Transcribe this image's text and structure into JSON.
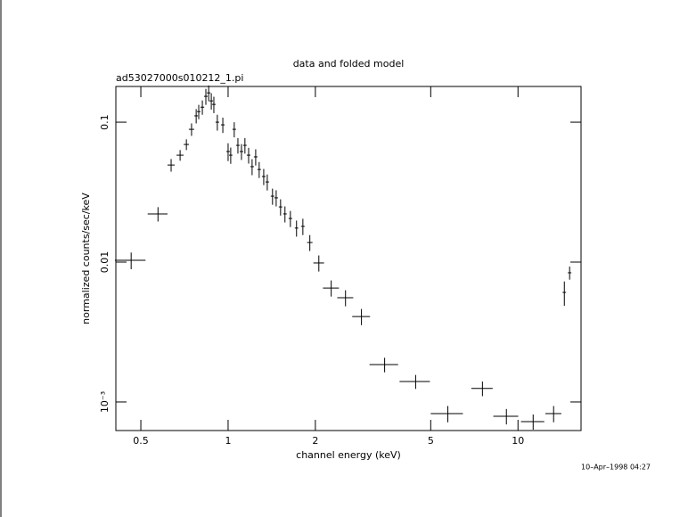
{
  "chart_data": {
    "type": "scatter",
    "title": "data and folded model",
    "subtitle": "ad53027000s010212_1.pi",
    "x_label": "channel energy (keV)",
    "y_label": "normalized counts/sec/keV",
    "annotation": "10–Apr–1998 04:27",
    "log_x": true,
    "log_y": true,
    "color": "#000000",
    "xlim": [
      0.41,
      16.5
    ],
    "ylim": [
      0.000625,
      0.18
    ],
    "xticks": [
      0.5,
      1,
      2,
      5,
      10
    ],
    "yticks": [
      {
        "value": 0.001,
        "label": "10⁻³"
      },
      0.01,
      0.1
    ],
    "x": [
      0.463,
      0.573,
      0.636,
      0.683,
      0.718,
      0.748,
      0.776,
      0.792,
      0.815,
      0.838,
      0.857,
      0.875,
      0.893,
      0.918,
      0.959,
      1.0,
      1.021,
      1.05,
      1.081,
      1.112,
      1.143,
      1.177,
      1.21,
      1.245,
      1.28,
      1.327,
      1.365,
      1.423,
      1.465,
      1.517,
      1.571,
      1.64,
      1.722,
      1.811,
      1.914,
      2.056,
      2.268,
      2.541,
      2.884,
      3.467,
      4.436,
      5.728,
      7.54,
      9.12,
      11.28,
      13.27,
      14.45,
      15.07
    ],
    "xerr": [
      0.056,
      0.045,
      0.018,
      0.019,
      0.015,
      0.016,
      0.011,
      0.011,
      0.012,
      0.012,
      0.012,
      0.012,
      0.013,
      0.013,
      0.014,
      0.014,
      0.014,
      0.015,
      0.015,
      0.016,
      0.016,
      0.017,
      0.017,
      0.018,
      0.018,
      0.019,
      0.019,
      0.02,
      0.021,
      0.021,
      0.022,
      0.023,
      0.024,
      0.026,
      0.041,
      0.087,
      0.144,
      0.161,
      0.204,
      0.392,
      0.532,
      0.728,
      0.639,
      0.9,
      1.04,
      0.84,
      0.2,
      0.21
    ],
    "y": [
      0.0103,
      0.0221,
      0.0494,
      0.0581,
      0.0693,
      0.0889,
      0.111,
      0.119,
      0.128,
      0.153,
      0.162,
      0.142,
      0.134,
      0.1,
      0.0957,
      0.0617,
      0.0581,
      0.0889,
      0.0683,
      0.0617,
      0.0683,
      0.0581,
      0.0481,
      0.0565,
      0.0459,
      0.0409,
      0.0374,
      0.0296,
      0.0288,
      0.0248,
      0.0221,
      0.0205,
      0.0175,
      0.018,
      0.0138,
      0.00986,
      0.00653,
      0.00556,
      0.00408,
      0.00185,
      0.0014,
      0.000826,
      0.00125,
      0.000791,
      0.000724,
      0.000826,
      0.00607,
      0.00839
    ],
    "yerr": [
      0.0014,
      0.0026,
      0.0051,
      0.0051,
      0.0061,
      0.0091,
      0.013,
      0.014,
      0.015,
      0.02,
      0.021,
      0.019,
      0.018,
      0.013,
      0.012,
      0.009,
      0.0077,
      0.011,
      0.0087,
      0.008,
      0.0087,
      0.0075,
      0.0063,
      0.0075,
      0.006,
      0.0054,
      0.0049,
      0.0039,
      0.0038,
      0.0033,
      0.0029,
      0.0027,
      0.0023,
      0.0024,
      0.0018,
      0.0013,
      0.00086,
      0.00073,
      0.00054,
      0.00022,
      0.00016,
      0.00011,
      0.00015,
      0.0001,
      9e-05,
      0.00011,
      0.0012,
      0.0009
    ]
  }
}
